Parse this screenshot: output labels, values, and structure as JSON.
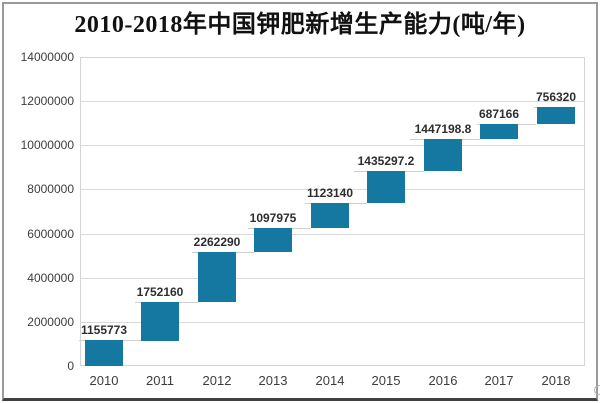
{
  "title": "2010-2018年中国钾肥新增生产能力(吨/年)",
  "colors": {
    "bar": "#1578a0",
    "gridline": "#d9d9d9",
    "plot_border": "#d4d4d4",
    "connector": "#cfcfcf",
    "axis_text": "#3d3d3d",
    "data_label_text": "#2e2e2e",
    "frame": "#9a9a9a",
    "frame_bottom": "#414141"
  },
  "chart_data": {
    "type": "bar",
    "variant": "waterfall",
    "title": "2010-2018年中国钾肥新增生产能力(吨/年)",
    "categories": [
      "2010",
      "2011",
      "2012",
      "2013",
      "2014",
      "2015",
      "2016",
      "2017",
      "2018"
    ],
    "values": [
      1155773,
      1752160,
      2262290,
      1097975,
      1123140,
      1435297.2,
      1447198.8,
      687166,
      756320
    ],
    "value_labels": [
      "1155773",
      "1752160",
      "2262290",
      "1097975",
      "1123140",
      "1435297.2",
      "1447198.8",
      "687166",
      "756320"
    ],
    "cumulative_tops": [
      1155773,
      2907933,
      5170223,
      6268198,
      7391338,
      8826635.2,
      10273834,
      10961000,
      11717320
    ],
    "xlabel": "",
    "ylabel": "",
    "ylim": [
      0,
      14000000
    ],
    "ytick_interval": 2000000,
    "ytick_labels": [
      "0",
      "2000000",
      "4000000",
      "6000000",
      "8000000",
      "10000000",
      "12000000",
      "14000000"
    ],
    "grid": true,
    "legend": false
  }
}
